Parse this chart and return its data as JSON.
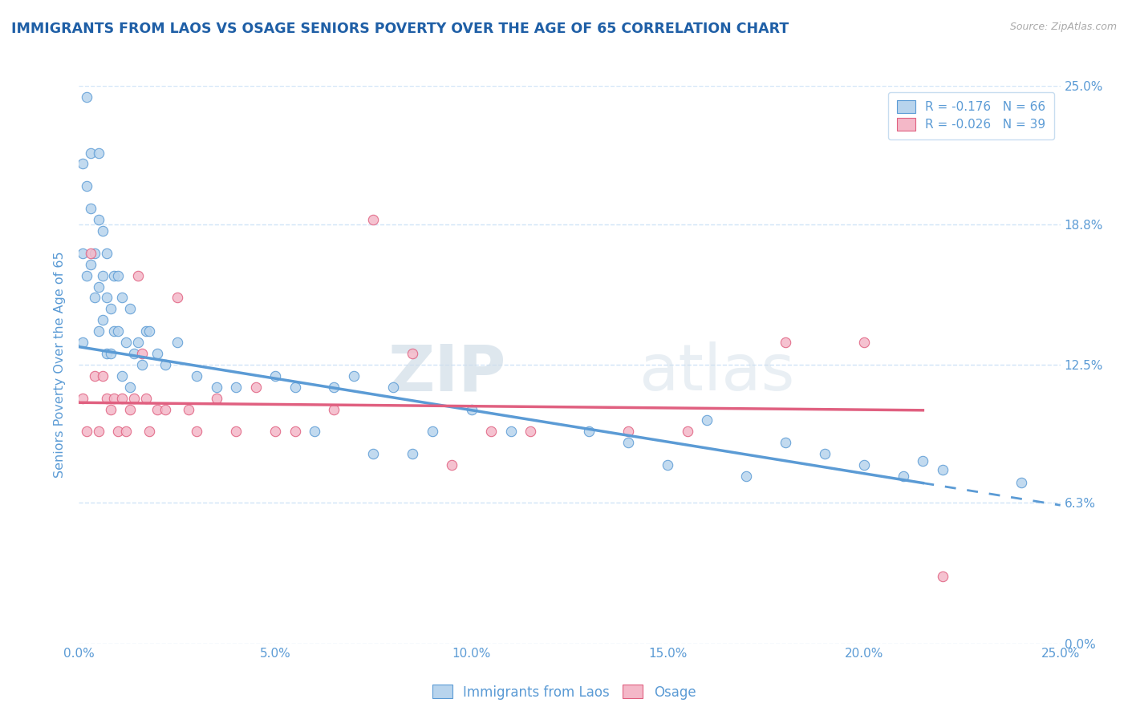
{
  "title": "IMMIGRANTS FROM LAOS VS OSAGE SENIORS POVERTY OVER THE AGE OF 65 CORRELATION CHART",
  "source": "Source: ZipAtlas.com",
  "xlabel": "",
  "ylabel": "Seniors Poverty Over the Age of 65",
  "legend_series": [
    "Immigrants from Laos",
    "Osage"
  ],
  "r_laos": -0.176,
  "n_laos": 66,
  "r_osage": -0.026,
  "n_osage": 39,
  "color_laos": "#b8d4ed",
  "color_laos_line": "#5b9bd5",
  "color_laos_edge": "#5b9bd5",
  "color_osage": "#f4b8c8",
  "color_osage_line": "#e06080",
  "color_osage_edge": "#e06080",
  "xlim": [
    0.0,
    0.25
  ],
  "ylim": [
    0.0,
    0.25
  ],
  "yticks": [
    0.0,
    0.063,
    0.125,
    0.188,
    0.25
  ],
  "ytick_labels": [
    "0.0%",
    "6.3%",
    "12.5%",
    "18.8%",
    "25.0%"
  ],
  "xticks": [
    0.0,
    0.05,
    0.1,
    0.15,
    0.2,
    0.25
  ],
  "xtick_labels": [
    "0.0%",
    "5.0%",
    "10.0%",
    "15.0%",
    "20.0%",
    "25.0%"
  ],
  "watermark_zip": "ZIP",
  "watermark_atlas": "atlas",
  "bg_color": "#ffffff",
  "title_color": "#1f5fa6",
  "axis_label_color": "#5b9bd5",
  "tick_color": "#5b9bd5",
  "grid_color": "#d0e4f7",
  "line_laos_start_y": 0.133,
  "line_laos_end_y": 0.062,
  "line_osage_start_y": 0.108,
  "line_osage_end_y": 0.104,
  "laos_x": [
    0.001,
    0.001,
    0.001,
    0.002,
    0.002,
    0.002,
    0.003,
    0.003,
    0.003,
    0.004,
    0.004,
    0.005,
    0.005,
    0.005,
    0.005,
    0.006,
    0.006,
    0.006,
    0.007,
    0.007,
    0.007,
    0.008,
    0.008,
    0.009,
    0.009,
    0.01,
    0.01,
    0.011,
    0.011,
    0.012,
    0.013,
    0.013,
    0.014,
    0.015,
    0.016,
    0.017,
    0.018,
    0.02,
    0.022,
    0.025,
    0.03,
    0.035,
    0.04,
    0.05,
    0.055,
    0.06,
    0.065,
    0.07,
    0.075,
    0.08,
    0.085,
    0.09,
    0.1,
    0.11,
    0.13,
    0.14,
    0.15,
    0.16,
    0.17,
    0.18,
    0.19,
    0.2,
    0.21,
    0.215,
    0.22,
    0.24
  ],
  "laos_y": [
    0.215,
    0.175,
    0.135,
    0.245,
    0.205,
    0.165,
    0.195,
    0.22,
    0.17,
    0.175,
    0.155,
    0.22,
    0.19,
    0.16,
    0.14,
    0.185,
    0.165,
    0.145,
    0.175,
    0.155,
    0.13,
    0.15,
    0.13,
    0.165,
    0.14,
    0.165,
    0.14,
    0.155,
    0.12,
    0.135,
    0.15,
    0.115,
    0.13,
    0.135,
    0.125,
    0.14,
    0.14,
    0.13,
    0.125,
    0.135,
    0.12,
    0.115,
    0.115,
    0.12,
    0.115,
    0.095,
    0.115,
    0.12,
    0.085,
    0.115,
    0.085,
    0.095,
    0.105,
    0.095,
    0.095,
    0.09,
    0.08,
    0.1,
    0.075,
    0.09,
    0.085,
    0.08,
    0.075,
    0.082,
    0.078,
    0.072
  ],
  "osage_x": [
    0.001,
    0.002,
    0.003,
    0.004,
    0.005,
    0.006,
    0.007,
    0.008,
    0.009,
    0.01,
    0.011,
    0.012,
    0.013,
    0.014,
    0.015,
    0.016,
    0.017,
    0.018,
    0.02,
    0.022,
    0.025,
    0.028,
    0.03,
    0.035,
    0.04,
    0.045,
    0.05,
    0.055,
    0.065,
    0.075,
    0.085,
    0.095,
    0.105,
    0.115,
    0.14,
    0.155,
    0.18,
    0.2,
    0.22
  ],
  "osage_y": [
    0.11,
    0.095,
    0.175,
    0.12,
    0.095,
    0.12,
    0.11,
    0.105,
    0.11,
    0.095,
    0.11,
    0.095,
    0.105,
    0.11,
    0.165,
    0.13,
    0.11,
    0.095,
    0.105,
    0.105,
    0.155,
    0.105,
    0.095,
    0.11,
    0.095,
    0.115,
    0.095,
    0.095,
    0.105,
    0.19,
    0.13,
    0.08,
    0.095,
    0.095,
    0.095,
    0.095,
    0.135,
    0.135,
    0.03
  ]
}
